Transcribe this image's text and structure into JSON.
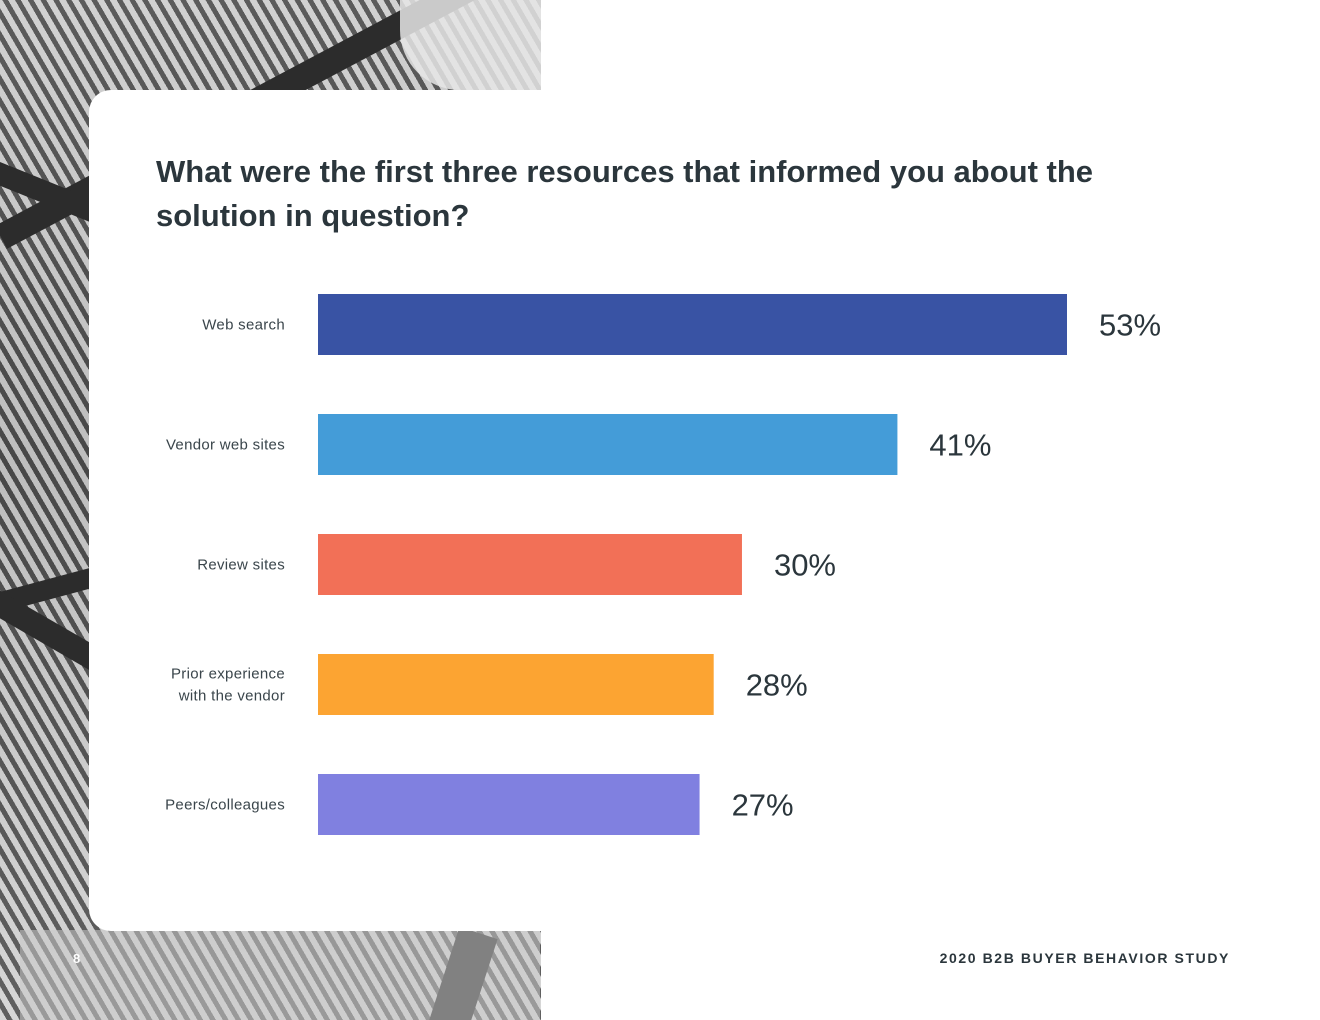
{
  "question": "What were the first three resources that informed you about the solution in question?",
  "footer": {
    "page_number": "8",
    "title": "2020 B2B BUYER BEHAVIOR STUDY"
  },
  "chart_data": {
    "type": "bar",
    "orientation": "horizontal",
    "title": "",
    "categories": [
      "Web search",
      "Vendor web sites",
      "Review sites",
      "Prior experience with the vendor",
      "Peers/colleagues"
    ],
    "category_label_lines": [
      [
        "Web search"
      ],
      [
        "Vendor web sites"
      ],
      [
        "Review sites"
      ],
      [
        "Prior experience",
        "with the vendor"
      ],
      [
        "Peers/colleagues"
      ]
    ],
    "values": [
      53,
      41,
      30,
      28,
      27
    ],
    "value_labels": [
      "53%",
      "41%",
      "30%",
      "28%",
      "27%"
    ],
    "colors": [
      "#3953a4",
      "#449cd8",
      "#f27057",
      "#fca432",
      "#8080e0"
    ],
    "xlabel": "",
    "ylabel": "",
    "xlim": [
      0,
      53
    ],
    "grid": false,
    "legend": "none"
  }
}
